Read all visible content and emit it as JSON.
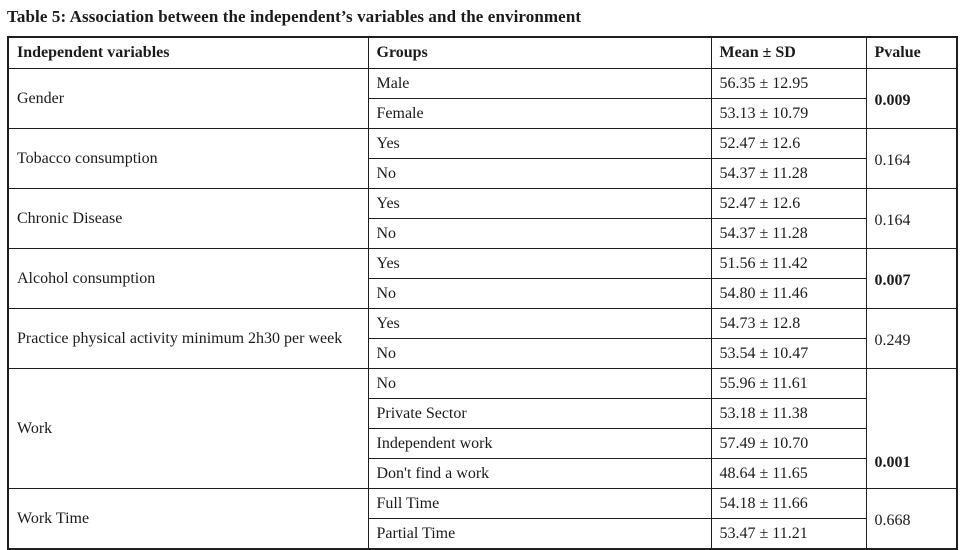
{
  "title": "Table 5: Association between the independent’s variables and the environment",
  "table": {
    "headers": [
      "Independent variables",
      "Groups",
      "Mean ± SD",
      "Pvalue"
    ],
    "groups": [
      {
        "variable": "Gender",
        "rows": [
          {
            "group": "Male",
            "mean": "56.35 ± 12.95"
          },
          {
            "group": "Female",
            "mean": "53.13 ± 10.79"
          }
        ],
        "pvalue": "0.009",
        "bold": true
      },
      {
        "variable": "Tobacco consumption",
        "rows": [
          {
            "group": "Yes",
            "mean": "52.47 ± 12.6"
          },
          {
            "group": "No",
            "mean": "54.37 ± 11.28"
          }
        ],
        "pvalue": "0.164",
        "bold": false
      },
      {
        "variable": "Chronic Disease",
        "rows": [
          {
            "group": "Yes",
            "mean": "52.47 ± 12.6"
          },
          {
            "group": "No",
            "mean": "54.37 ± 11.28"
          }
        ],
        "pvalue": "0.164",
        "bold": false
      },
      {
        "variable": "Alcohol consumption",
        "rows": [
          {
            "group": "Yes",
            "mean": "51.56 ± 11.42"
          },
          {
            "group": "No",
            "mean": "54.80 ± 11.46"
          }
        ],
        "pvalue": "0.007",
        "bold": true
      },
      {
        "variable": "Practice physical activity minimum 2h30 per week",
        "rows": [
          {
            "group": "Yes",
            "mean": "54.73 ± 12.8"
          },
          {
            "group": "No",
            "mean": "53.54 ± 10.47"
          }
        ],
        "pvalue": "0.249",
        "bold": false
      },
      {
        "variable": "Work",
        "rows": [
          {
            "group": "No",
            "mean": "55.96 ± 11.61"
          },
          {
            "group": "Private Sector",
            "mean": "53.18 ± 11.38"
          },
          {
            "group": "Independent work",
            "mean": "57.49 ± 10.70"
          },
          {
            "group": "Don't find a work",
            "mean": "48.64 ± 11.65"
          }
        ],
        "pvalue": "0.001",
        "bold": true
      },
      {
        "variable": "Work Time",
        "rows": [
          {
            "group": "Full Time",
            "mean": "54.18 ± 11.66"
          },
          {
            "group": "Partial Time",
            "mean": "53.47 ± 11.21"
          }
        ],
        "pvalue": "0.668",
        "bold": false
      }
    ]
  }
}
